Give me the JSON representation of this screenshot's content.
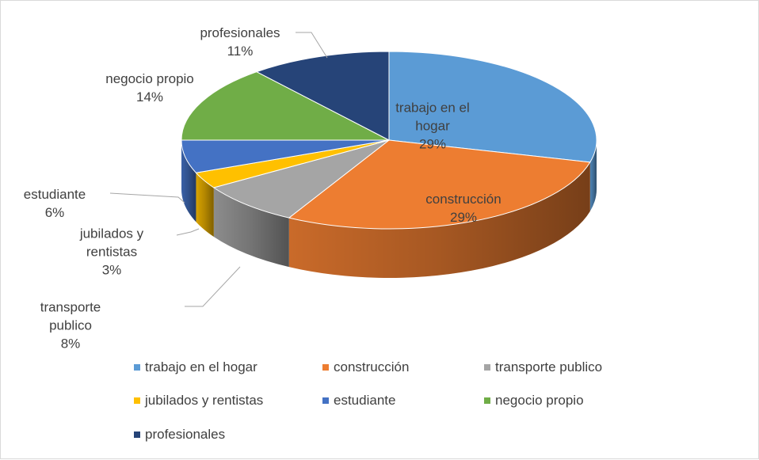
{
  "chart_data": {
    "type": "pie",
    "categories": [
      "trabajo en el hogar",
      "construcción",
      "transporte publico",
      "jubilados y rentistas",
      "estudiante",
      "negocio propio",
      "profesionales"
    ],
    "values": [
      29,
      29,
      8,
      3,
      6,
      14,
      11
    ],
    "value_labels": [
      "29%",
      "29%",
      "8%",
      "3%",
      "6%",
      "14%",
      "11%"
    ],
    "colors": [
      "#5b9bd5",
      "#ed7d31",
      "#a5a5a5",
      "#ffc000",
      "#4472c4",
      "#70ad47",
      "#264478"
    ],
    "legend": "bottom"
  }
}
